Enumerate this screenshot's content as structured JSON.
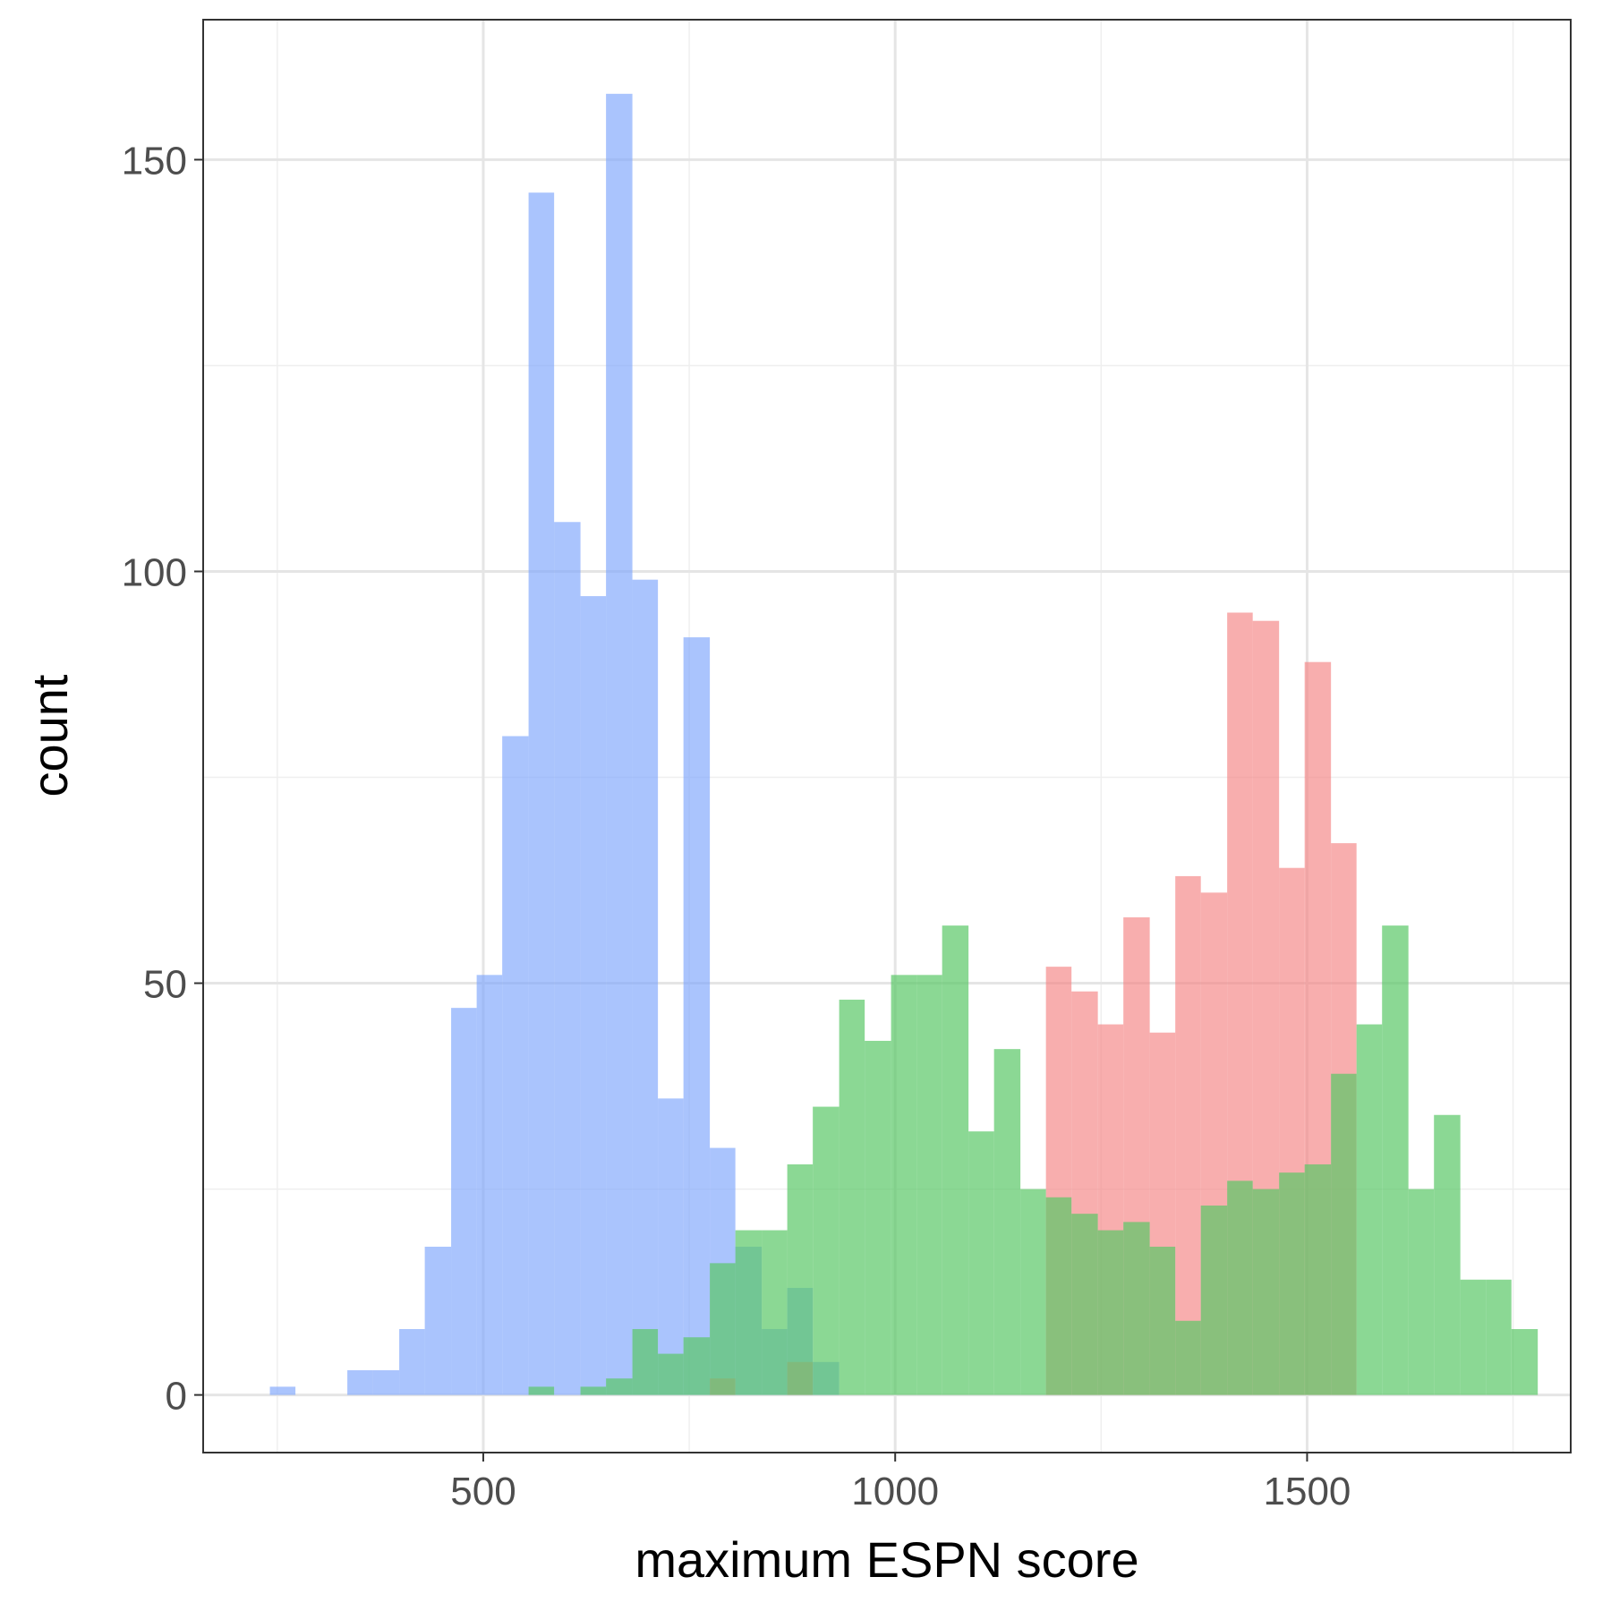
{
  "chart_data": {
    "type": "bar",
    "subtype": "histogram",
    "title": "",
    "xlabel": "maximum ESPN score",
    "ylabel": "count",
    "xlim": [
      160,
      1820
    ],
    "ylim": [
      -7,
      167
    ],
    "x_ticks": [
      500,
      1000,
      1500
    ],
    "x_tick_labels": [
      "500",
      "1000",
      "1500"
    ],
    "y_ticks": [
      0,
      50,
      100,
      150
    ],
    "y_tick_labels": [
      "0",
      "50",
      "100",
      "150"
    ],
    "x_minor_ticks": [
      250,
      750,
      1250,
      1750
    ],
    "y_minor_ticks": [
      25,
      75,
      125
    ],
    "grid": true,
    "legend": "none",
    "bin_width": 31.4,
    "series": [
      {
        "color": "#7ca4fc",
        "opacity": 0.65,
        "bins": [
          {
            "x0": 241,
            "x1": 272,
            "count": 1
          },
          {
            "x0": 335,
            "x1": 366,
            "count": 3
          },
          {
            "x0": 366,
            "x1": 398,
            "count": 3
          },
          {
            "x0": 398,
            "x1": 429,
            "count": 8
          },
          {
            "x0": 429,
            "x1": 461,
            "count": 18
          },
          {
            "x0": 461,
            "x1": 492,
            "count": 47
          },
          {
            "x0": 492,
            "x1": 523,
            "count": 51
          },
          {
            "x0": 523,
            "x1": 555,
            "count": 80
          },
          {
            "x0": 555,
            "x1": 586,
            "count": 146
          },
          {
            "x0": 586,
            "x1": 618,
            "count": 106
          },
          {
            "x0": 618,
            "x1": 649,
            "count": 97
          },
          {
            "x0": 649,
            "x1": 681,
            "count": 158
          },
          {
            "x0": 681,
            "x1": 712,
            "count": 99
          },
          {
            "x0": 712,
            "x1": 743,
            "count": 36
          },
          {
            "x0": 743,
            "x1": 775,
            "count": 92
          },
          {
            "x0": 775,
            "x1": 806,
            "count": 30
          },
          {
            "x0": 806,
            "x1": 838,
            "count": 18
          },
          {
            "x0": 838,
            "x1": 869,
            "count": 8
          },
          {
            "x0": 869,
            "x1": 900,
            "count": 13
          },
          {
            "x0": 900,
            "x1": 932,
            "count": 4
          }
        ]
      },
      {
        "color": "#f48282",
        "opacity": 0.65,
        "bins": [
          {
            "x0": 775,
            "x1": 806,
            "count": 2
          },
          {
            "x0": 869,
            "x1": 900,
            "count": 4
          },
          {
            "x0": 1183,
            "x1": 1214,
            "count": 52
          },
          {
            "x0": 1214,
            "x1": 1246,
            "count": 49
          },
          {
            "x0": 1246,
            "x1": 1277,
            "count": 45
          },
          {
            "x0": 1277,
            "x1": 1309,
            "count": 58
          },
          {
            "x0": 1309,
            "x1": 1340,
            "count": 44
          },
          {
            "x0": 1340,
            "x1": 1371,
            "count": 63
          },
          {
            "x0": 1371,
            "x1": 1403,
            "count": 61
          },
          {
            "x0": 1403,
            "x1": 1434,
            "count": 95
          },
          {
            "x0": 1434,
            "x1": 1466,
            "count": 94
          },
          {
            "x0": 1466,
            "x1": 1497,
            "count": 64
          },
          {
            "x0": 1497,
            "x1": 1529,
            "count": 89
          },
          {
            "x0": 1529,
            "x1": 1560,
            "count": 67
          }
        ]
      },
      {
        "color": "#5ac767",
        "opacity": 0.7,
        "bins": [
          {
            "x0": 555,
            "x1": 586,
            "count": 1
          },
          {
            "x0": 618,
            "x1": 649,
            "count": 1
          },
          {
            "x0": 649,
            "x1": 681,
            "count": 2
          },
          {
            "x0": 681,
            "x1": 712,
            "count": 8
          },
          {
            "x0": 712,
            "x1": 743,
            "count": 5
          },
          {
            "x0": 743,
            "x1": 775,
            "count": 7
          },
          {
            "x0": 775,
            "x1": 806,
            "count": 16
          },
          {
            "x0": 806,
            "x1": 838,
            "count": 20
          },
          {
            "x0": 838,
            "x1": 869,
            "count": 20
          },
          {
            "x0": 869,
            "x1": 900,
            "count": 28
          },
          {
            "x0": 900,
            "x1": 932,
            "count": 35
          },
          {
            "x0": 932,
            "x1": 963,
            "count": 48
          },
          {
            "x0": 963,
            "x1": 995,
            "count": 43
          },
          {
            "x0": 995,
            "x1": 1026,
            "count": 51
          },
          {
            "x0": 1026,
            "x1": 1057,
            "count": 51
          },
          {
            "x0": 1057,
            "x1": 1089,
            "count": 57
          },
          {
            "x0": 1089,
            "x1": 1120,
            "count": 32
          },
          {
            "x0": 1120,
            "x1": 1152,
            "count": 42
          },
          {
            "x0": 1152,
            "x1": 1183,
            "count": 25
          },
          {
            "x0": 1183,
            "x1": 1214,
            "count": 24
          },
          {
            "x0": 1214,
            "x1": 1246,
            "count": 22
          },
          {
            "x0": 1246,
            "x1": 1277,
            "count": 20
          },
          {
            "x0": 1277,
            "x1": 1309,
            "count": 21
          },
          {
            "x0": 1309,
            "x1": 1340,
            "count": 18
          },
          {
            "x0": 1340,
            "x1": 1371,
            "count": 9
          },
          {
            "x0": 1371,
            "x1": 1403,
            "count": 23
          },
          {
            "x0": 1403,
            "x1": 1434,
            "count": 26
          },
          {
            "x0": 1434,
            "x1": 1466,
            "count": 25
          },
          {
            "x0": 1466,
            "x1": 1497,
            "count": 27
          },
          {
            "x0": 1497,
            "x1": 1529,
            "count": 28
          },
          {
            "x0": 1529,
            "x1": 1560,
            "count": 39
          },
          {
            "x0": 1560,
            "x1": 1591,
            "count": 45
          },
          {
            "x0": 1591,
            "x1": 1623,
            "count": 57
          },
          {
            "x0": 1623,
            "x1": 1654,
            "count": 25
          },
          {
            "x0": 1654,
            "x1": 1686,
            "count": 34
          },
          {
            "x0": 1686,
            "x1": 1717,
            "count": 14
          },
          {
            "x0": 1717,
            "x1": 1748,
            "count": 14
          },
          {
            "x0": 1748,
            "x1": 1780,
            "count": 8
          }
        ]
      }
    ]
  }
}
